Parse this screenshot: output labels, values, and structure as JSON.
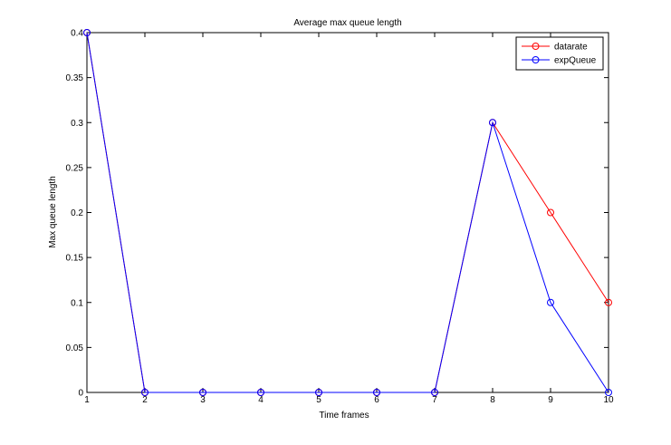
{
  "chart_data": {
    "type": "line",
    "title": "Average max queue length",
    "xlabel": "Time frames",
    "ylabel": "Max queue length",
    "xlim": [
      1,
      10
    ],
    "ylim": [
      0,
      0.4
    ],
    "x": [
      1,
      2,
      3,
      4,
      5,
      6,
      7,
      8,
      9,
      10
    ],
    "xticks": [
      "1",
      "2",
      "3",
      "4",
      "5",
      "6",
      "7",
      "8",
      "9",
      "10"
    ],
    "yticks": [
      "0",
      "0.05",
      "0.1",
      "0.15",
      "0.2",
      "0.25",
      "0.3",
      "0.35",
      "0.4"
    ],
    "grid": false,
    "legend_position": "top-right",
    "series": [
      {
        "name": "datarate",
        "color": "#ff0000",
        "marker": "circle",
        "values": [
          0.4,
          0,
          0,
          0,
          0,
          0,
          0,
          0.3,
          0.2,
          0.1
        ]
      },
      {
        "name": "expQueue",
        "color": "#0000ff",
        "marker": "circle",
        "values": [
          0.4,
          0,
          0,
          0,
          0,
          0,
          0,
          0.3,
          0.1,
          0
        ]
      }
    ]
  }
}
